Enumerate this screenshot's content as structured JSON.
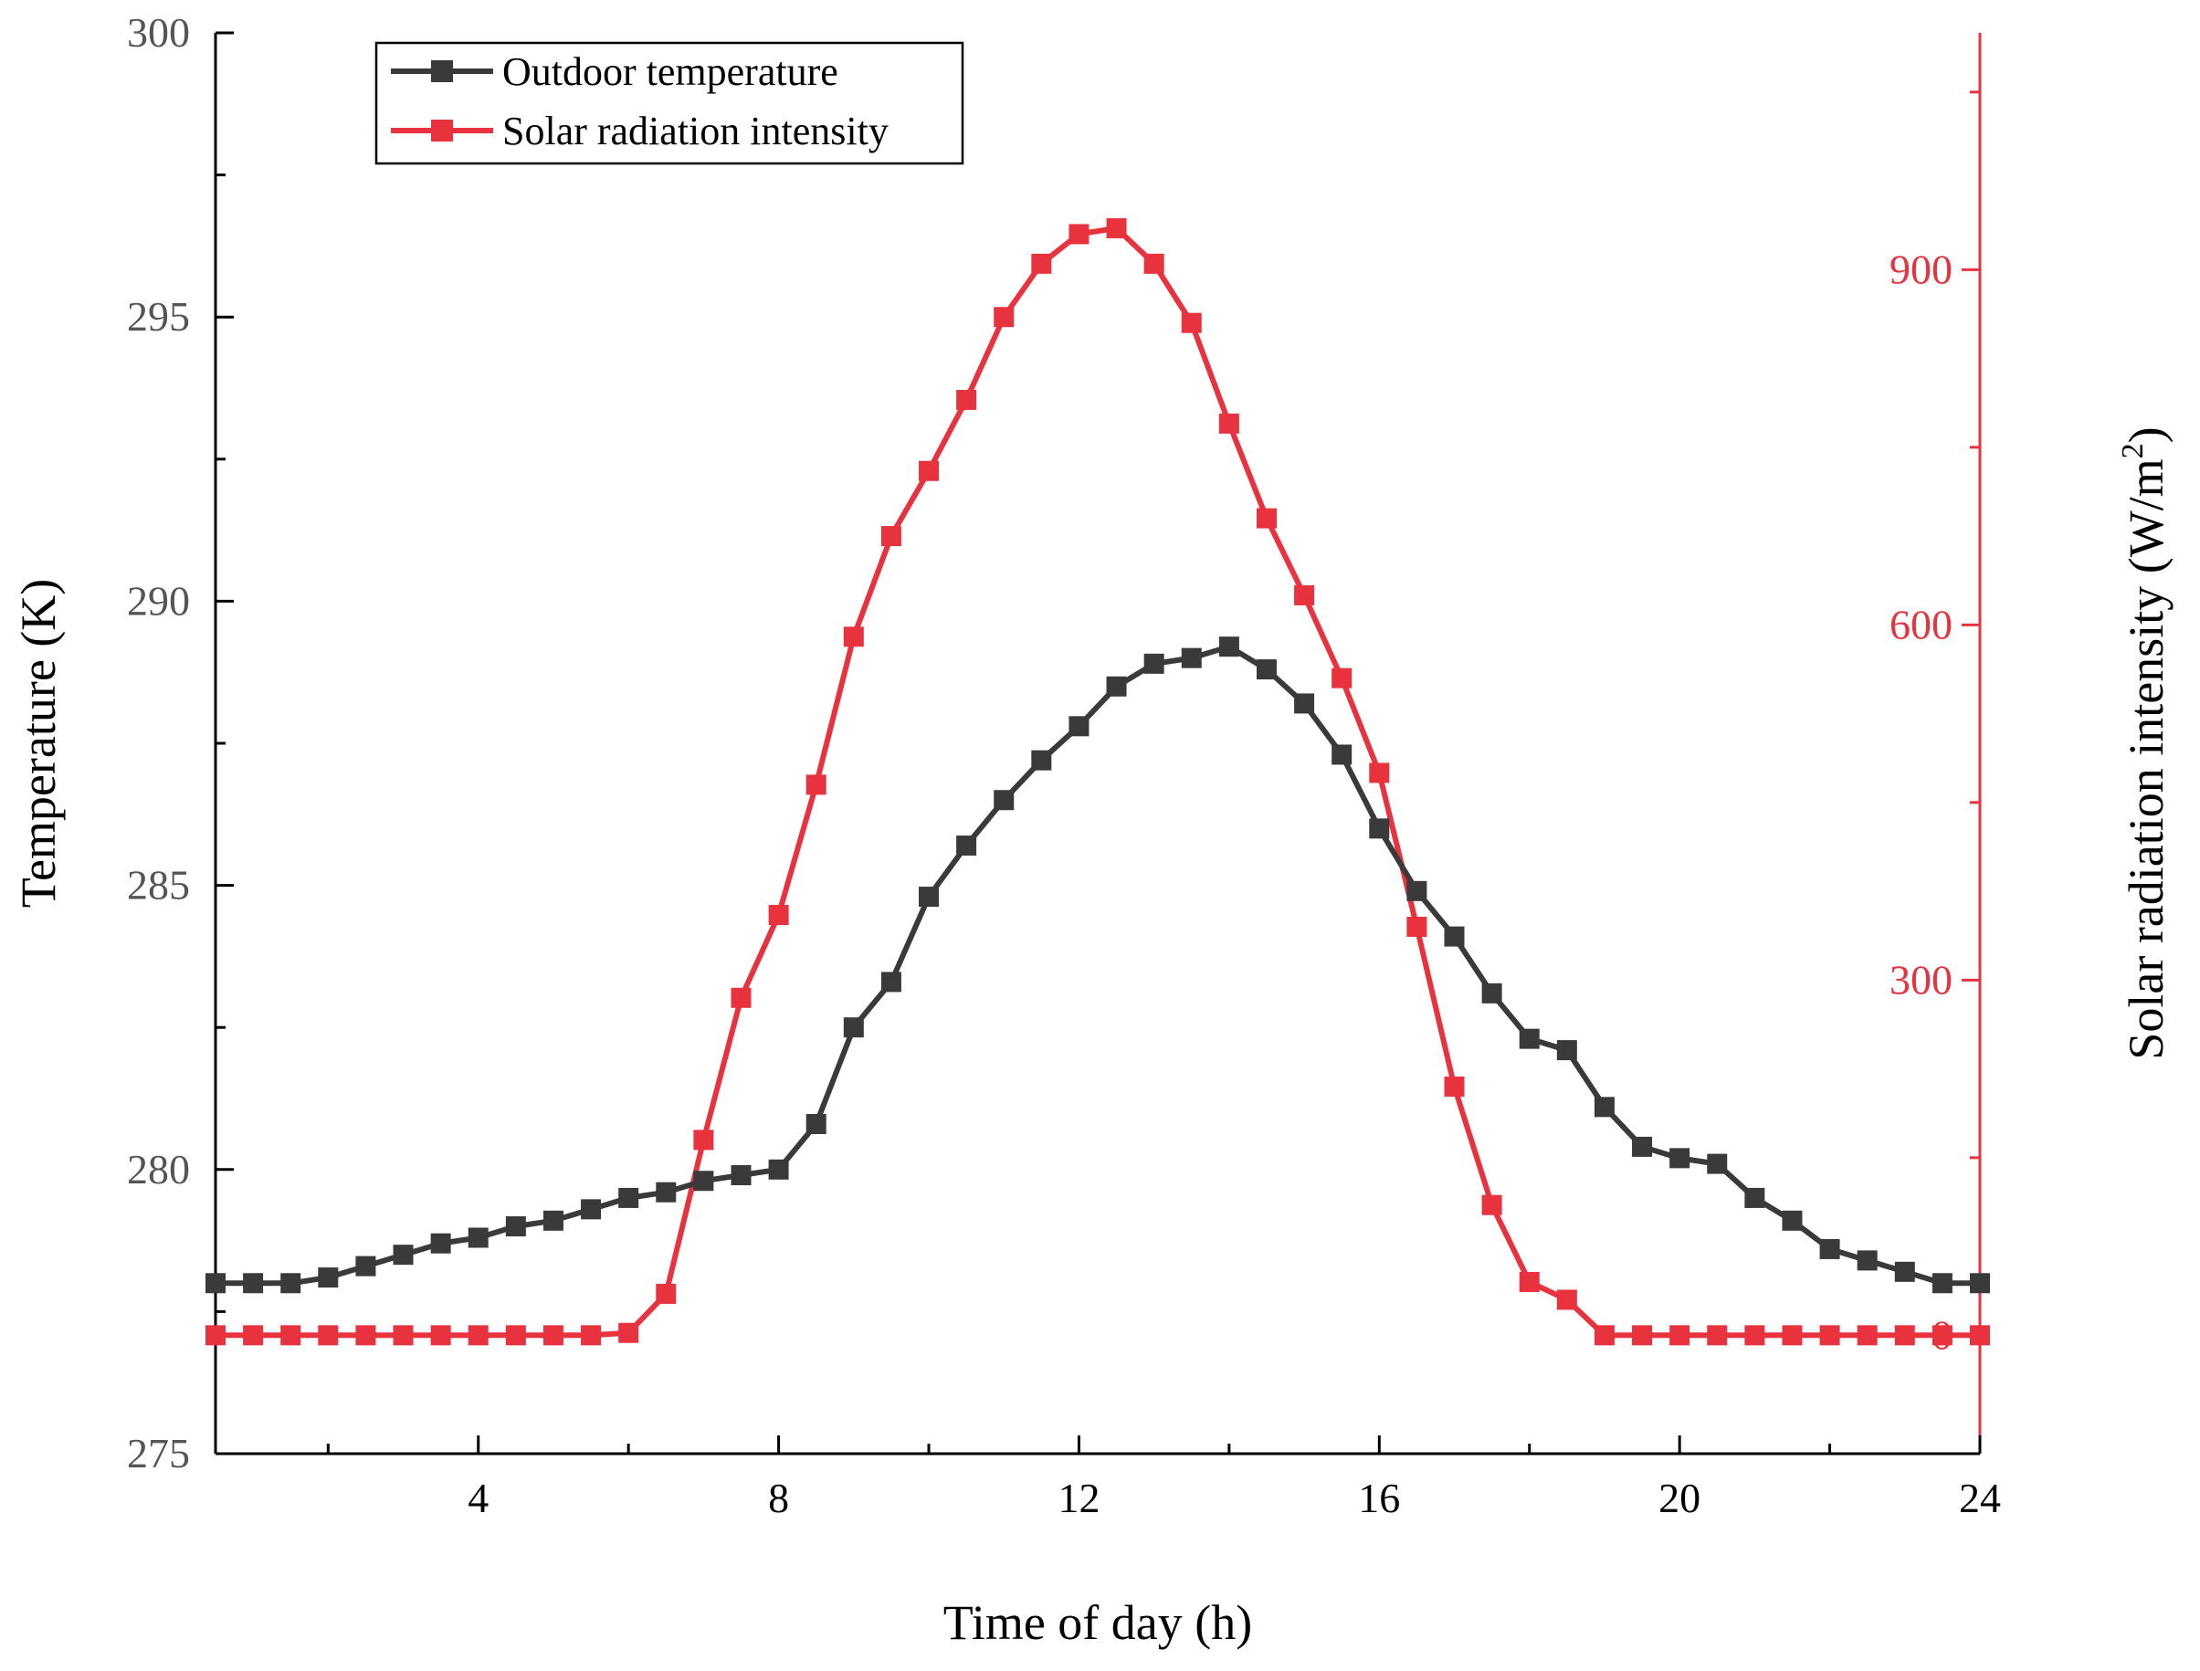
{
  "chart_data": {
    "type": "line",
    "title": "",
    "xlabel": "Time of day (h)",
    "ylabel_left": "Temperature (K)",
    "ylabel_right": "Solar radiation intensity (W/m",
    "ylabel_right_superscript": "2",
    "ylabel_right_suffix": ")",
    "xlim": [
      0.5,
      24
    ],
    "xticks": [
      4,
      8,
      12,
      16,
      20,
      24
    ],
    "xtick_labels": [
      "4",
      "8",
      "12",
      "16",
      "20",
      "24"
    ],
    "ylim_left": [
      275,
      300
    ],
    "yticks_left": [
      275,
      280,
      285,
      290,
      295,
      300
    ],
    "ytick_labels_left": [
      "275",
      "280",
      "285",
      "290",
      "295",
      "300"
    ],
    "ylim_right": [
      -100,
      1100
    ],
    "yticks_right": [
      0,
      300,
      600,
      900
    ],
    "ytick_labels_right": [
      "0",
      "300",
      "600",
      "900"
    ],
    "legend_position": "top-left",
    "grid": false,
    "x": [
      0.5,
      1,
      1.5,
      2,
      2.5,
      3,
      3.5,
      4,
      4.5,
      5,
      5.5,
      6,
      6.5,
      7,
      7.5,
      8,
      8.5,
      9,
      9.5,
      10,
      10.5,
      11,
      11.5,
      12,
      12.5,
      13,
      13.5,
      14,
      14.5,
      15,
      15.5,
      16,
      16.5,
      17,
      17.5,
      18,
      18.5,
      19,
      19.5,
      20,
      20.5,
      21,
      21.5,
      22,
      22.5,
      23,
      23.5,
      24
    ],
    "series": [
      {
        "name": "Outdoor temperature",
        "axis": "left",
        "color": "#3a3a3a",
        "values": [
          278.0,
          278.0,
          278.0,
          278.1,
          278.3,
          278.5,
          278.7,
          278.8,
          279.0,
          279.1,
          279.3,
          279.5,
          279.6,
          279.8,
          279.9,
          280.0,
          280.8,
          282.5,
          283.3,
          284.8,
          285.7,
          286.5,
          287.2,
          287.8,
          288.5,
          288.9,
          289.0,
          289.2,
          288.8,
          288.2,
          287.3,
          286.0,
          284.9,
          284.1,
          283.1,
          282.3,
          282.1,
          281.1,
          280.4,
          280.2,
          280.1,
          279.5,
          279.1,
          278.6,
          278.4,
          278.2,
          278.0,
          278.0
        ]
      },
      {
        "name": "Solar radiation intensity",
        "axis": "right",
        "color": "#e8333f",
        "values": [
          0,
          0,
          0,
          0,
          0,
          0,
          0,
          0,
          0,
          0,
          0,
          2,
          35,
          165,
          285,
          355,
          465,
          590,
          675,
          730,
          790,
          860,
          905,
          930,
          935,
          905,
          855,
          770,
          690,
          625,
          555,
          475,
          345,
          210,
          110,
          45,
          30,
          0,
          0,
          0,
          0,
          0,
          0,
          0,
          0,
          0,
          0,
          0
        ]
      }
    ]
  },
  "colors": {
    "left_axis": "#555555",
    "right_axis": "#e8333f",
    "temperature_series": "#3a3a3a",
    "radiation_series": "#e8333f"
  }
}
